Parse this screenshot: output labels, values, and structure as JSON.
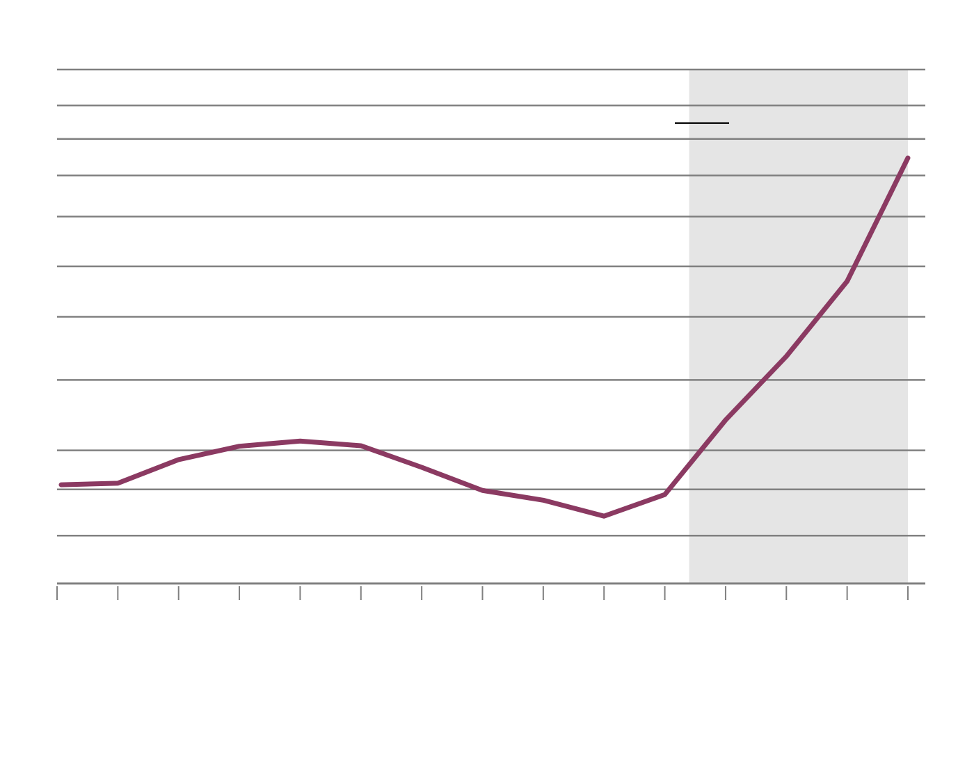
{
  "chart_data": {
    "type": "line",
    "title": "",
    "xlabel": "",
    "ylabel": "",
    "x": [
      0,
      1,
      2,
      3,
      4,
      5,
      6,
      7,
      8,
      9,
      10,
      11,
      12,
      13,
      14
    ],
    "series": [
      {
        "values": [
          19.2,
          19.5,
          24.1,
          26.7,
          27.7,
          26.8,
          22.6,
          18.1,
          16.2,
          13.1,
          17.3,
          31.8,
          44.2,
          58.8,
          82.8
        ],
        "color": "#8b3a62"
      }
    ],
    "ylim": [
      0,
      100
    ],
    "xlim": [
      0,
      14
    ],
    "gridlines_y": [
      0,
      9.3,
      18.3,
      25.9,
      39.6,
      51.9,
      61.7,
      71.4,
      79.4,
      86.5,
      93,
      100
    ],
    "shaded_region_x": [
      10.4,
      14
    ],
    "shade_color": "#e5e5e5",
    "grid_color": "#808080",
    "legend": "top-right",
    "grid": true
  }
}
